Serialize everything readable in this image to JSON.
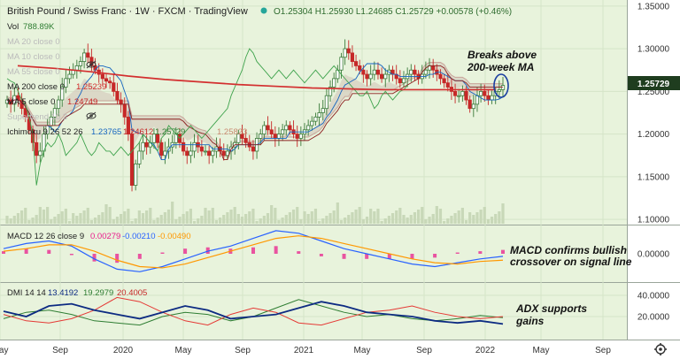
{
  "header": {
    "symbol": "British Pound / Swiss Franc · 1W · FXCM · TradingView",
    "ohlc": "O1.25304 H1.25930 L1.24685 C1.25729 +0.00578 (+0.46%)"
  },
  "indicator_labels": {
    "vol": "Vol",
    "vol_value": "788.89K",
    "ma20": "MA 20 close 0",
    "ma10": "MA 10 close 0",
    "ma55": "MA 55 close 0",
    "ma200": "MA 200 close 0",
    "ma200_value": "1.25239",
    "ma5": "MA 5 close 0",
    "ma5_value": "1.24749",
    "supertrend": "Supertrend 10 3",
    "ichimoku": "Ichimoku 9 26 52 26",
    "ichimoku_v1": "1.23765",
    "ichimoku_v2": "1.24612",
    "ichimoku_v3": "1.25729",
    "ichimoku_v4": "1.25823",
    "macd": "MACD 12 26 close 9",
    "macd_v1": "0.00279",
    "macd_v2": "-0.00210",
    "macd_v3": "-0.00490",
    "dmi": "DMI 14 14",
    "dmi_v1": "13.4192",
    "dmi_v2": "19.2979",
    "dmi_v3": "20.4005"
  },
  "annotations": {
    "breaks_line1": "Breaks above",
    "breaks_line2": "200-week MA",
    "macd_line1": "MACD confirms bullish",
    "macd_line2": "crossover on signal line",
    "adx_line1": "ADX supports",
    "adx_line2": "gains"
  },
  "colors": {
    "panel_bg": "#e8f3dc",
    "up": "#3a7a3a",
    "down": "#c62828",
    "ma200": "#d32f2f",
    "kumo": "#d7cfc0",
    "senkou_b": "#c9a49a",
    "lagging": "#3fa34d",
    "macd_line": "#2962ff",
    "signal_line": "#ff9800",
    "hist": "#e91e8c",
    "adx": "#0d2b82",
    "dip": "#2e7d32",
    "dim": "#e53935",
    "price_tag": "#1f3d1f",
    "circle": "#1a3fa0"
  },
  "chart_data": {
    "type": "candlestick",
    "symbol": "GBP/CHF",
    "timeframe": "1W",
    "price_axis": {
      "ticks": [
        "1.35000",
        "1.30000",
        "1.25000",
        "1.20000",
        "1.15000",
        "1.10000"
      ],
      "range": [
        1.095,
        1.355
      ],
      "last_price": "1.25729"
    },
    "x_axis": {
      "ticks": [
        "May",
        "Sep",
        "2020",
        "May",
        "Sep",
        "2021",
        "May",
        "Sep",
        "2022",
        "May",
        "Sep"
      ]
    },
    "macd_axis": {
      "ticks": [
        "0.00000"
      ]
    },
    "dmi_axis": {
      "ticks": [
        "40.0000",
        "20.0000"
      ],
      "range": [
        0,
        50
      ]
    },
    "ohlc_last": {
      "open": 1.25304,
      "high": 1.2593,
      "low": 1.24685,
      "close": 1.25729,
      "change": 0.00578,
      "change_pct": 0.46
    },
    "ma200_last": 1.25239,
    "ma5_last": 1.24749,
    "close_series": [
      1.24,
      1.235,
      1.245,
      1.24,
      1.23,
      1.22,
      1.205,
      1.19,
      1.175,
      1.18,
      1.2,
      1.21,
      1.22,
      1.23,
      1.24,
      1.255,
      1.265,
      1.27,
      1.275,
      1.28,
      1.285,
      1.295,
      1.29,
      1.28,
      1.275,
      1.27,
      1.265,
      1.262,
      1.26,
      1.25,
      1.24,
      1.235,
      1.22,
      1.2,
      1.14,
      1.165,
      1.18,
      1.19,
      1.185,
      1.19,
      1.2,
      1.19,
      1.175,
      1.18,
      1.185,
      1.19,
      1.2,
      1.19,
      1.18,
      1.175,
      1.18,
      1.19,
      1.185,
      1.18,
      1.18,
      1.175,
      1.18,
      1.185,
      1.18,
      1.175,
      1.18,
      1.185,
      1.19,
      1.2,
      1.195,
      1.19,
      1.185,
      1.18,
      1.195,
      1.2,
      1.21,
      1.205,
      1.2,
      1.195,
      1.2,
      1.205,
      1.21,
      1.205,
      1.2,
      1.195,
      1.2,
      1.205,
      1.21,
      1.215,
      1.22,
      1.225,
      1.23,
      1.245,
      1.255,
      1.265,
      1.275,
      1.29,
      1.3,
      1.295,
      1.285,
      1.28,
      1.275,
      1.27,
      1.265,
      1.27,
      1.275,
      1.27,
      1.265,
      1.27,
      1.275,
      1.27,
      1.265,
      1.26,
      1.265,
      1.27,
      1.275,
      1.27,
      1.265,
      1.27,
      1.275,
      1.28,
      1.275,
      1.27,
      1.265,
      1.26,
      1.255,
      1.25,
      1.245,
      1.245,
      1.25,
      1.24,
      1.23,
      1.235,
      1.245,
      1.25,
      1.245,
      1.24,
      1.245,
      1.25,
      1.252,
      1.257
    ],
    "ma200_series": [
      1.28,
      1.277,
      1.273,
      1.268,
      1.264,
      1.261,
      1.258,
      1.256,
      1.254,
      1.253,
      1.252,
      1.252,
      1.252,
      1.252
    ],
    "macd_series": [
      0.004,
      0.008,
      0.01,
      0.006,
      -0.004,
      -0.012,
      -0.014,
      -0.01,
      -0.004,
      0.002,
      0.006,
      0.012,
      0.018,
      0.016,
      0.01,
      0.004,
      0.0,
      -0.004,
      -0.008,
      -0.01,
      -0.007,
      -0.004,
      -0.002
    ],
    "signal_series": [
      0.002,
      0.004,
      0.007,
      0.007,
      0.002,
      -0.005,
      -0.01,
      -0.011,
      -0.008,
      -0.003,
      0.002,
      0.007,
      0.012,
      0.014,
      0.012,
      0.008,
      0.004,
      0.0,
      -0.004,
      -0.007,
      -0.008,
      -0.006,
      -0.005
    ],
    "adx_series": [
      25,
      20,
      30,
      32,
      26,
      22,
      18,
      24,
      30,
      26,
      18,
      20,
      22,
      28,
      34,
      30,
      24,
      22,
      20,
      16,
      14,
      16,
      13
    ],
    "di_plus_series": [
      18,
      24,
      26,
      22,
      16,
      14,
      12,
      20,
      24,
      22,
      16,
      20,
      28,
      36,
      30,
      24,
      20,
      22,
      18,
      16,
      18,
      21,
      19
    ],
    "di_minus_series": [
      22,
      16,
      14,
      18,
      26,
      38,
      34,
      24,
      16,
      12,
      22,
      28,
      24,
      14,
      12,
      18,
      24,
      26,
      30,
      24,
      20,
      18,
      20
    ]
  }
}
